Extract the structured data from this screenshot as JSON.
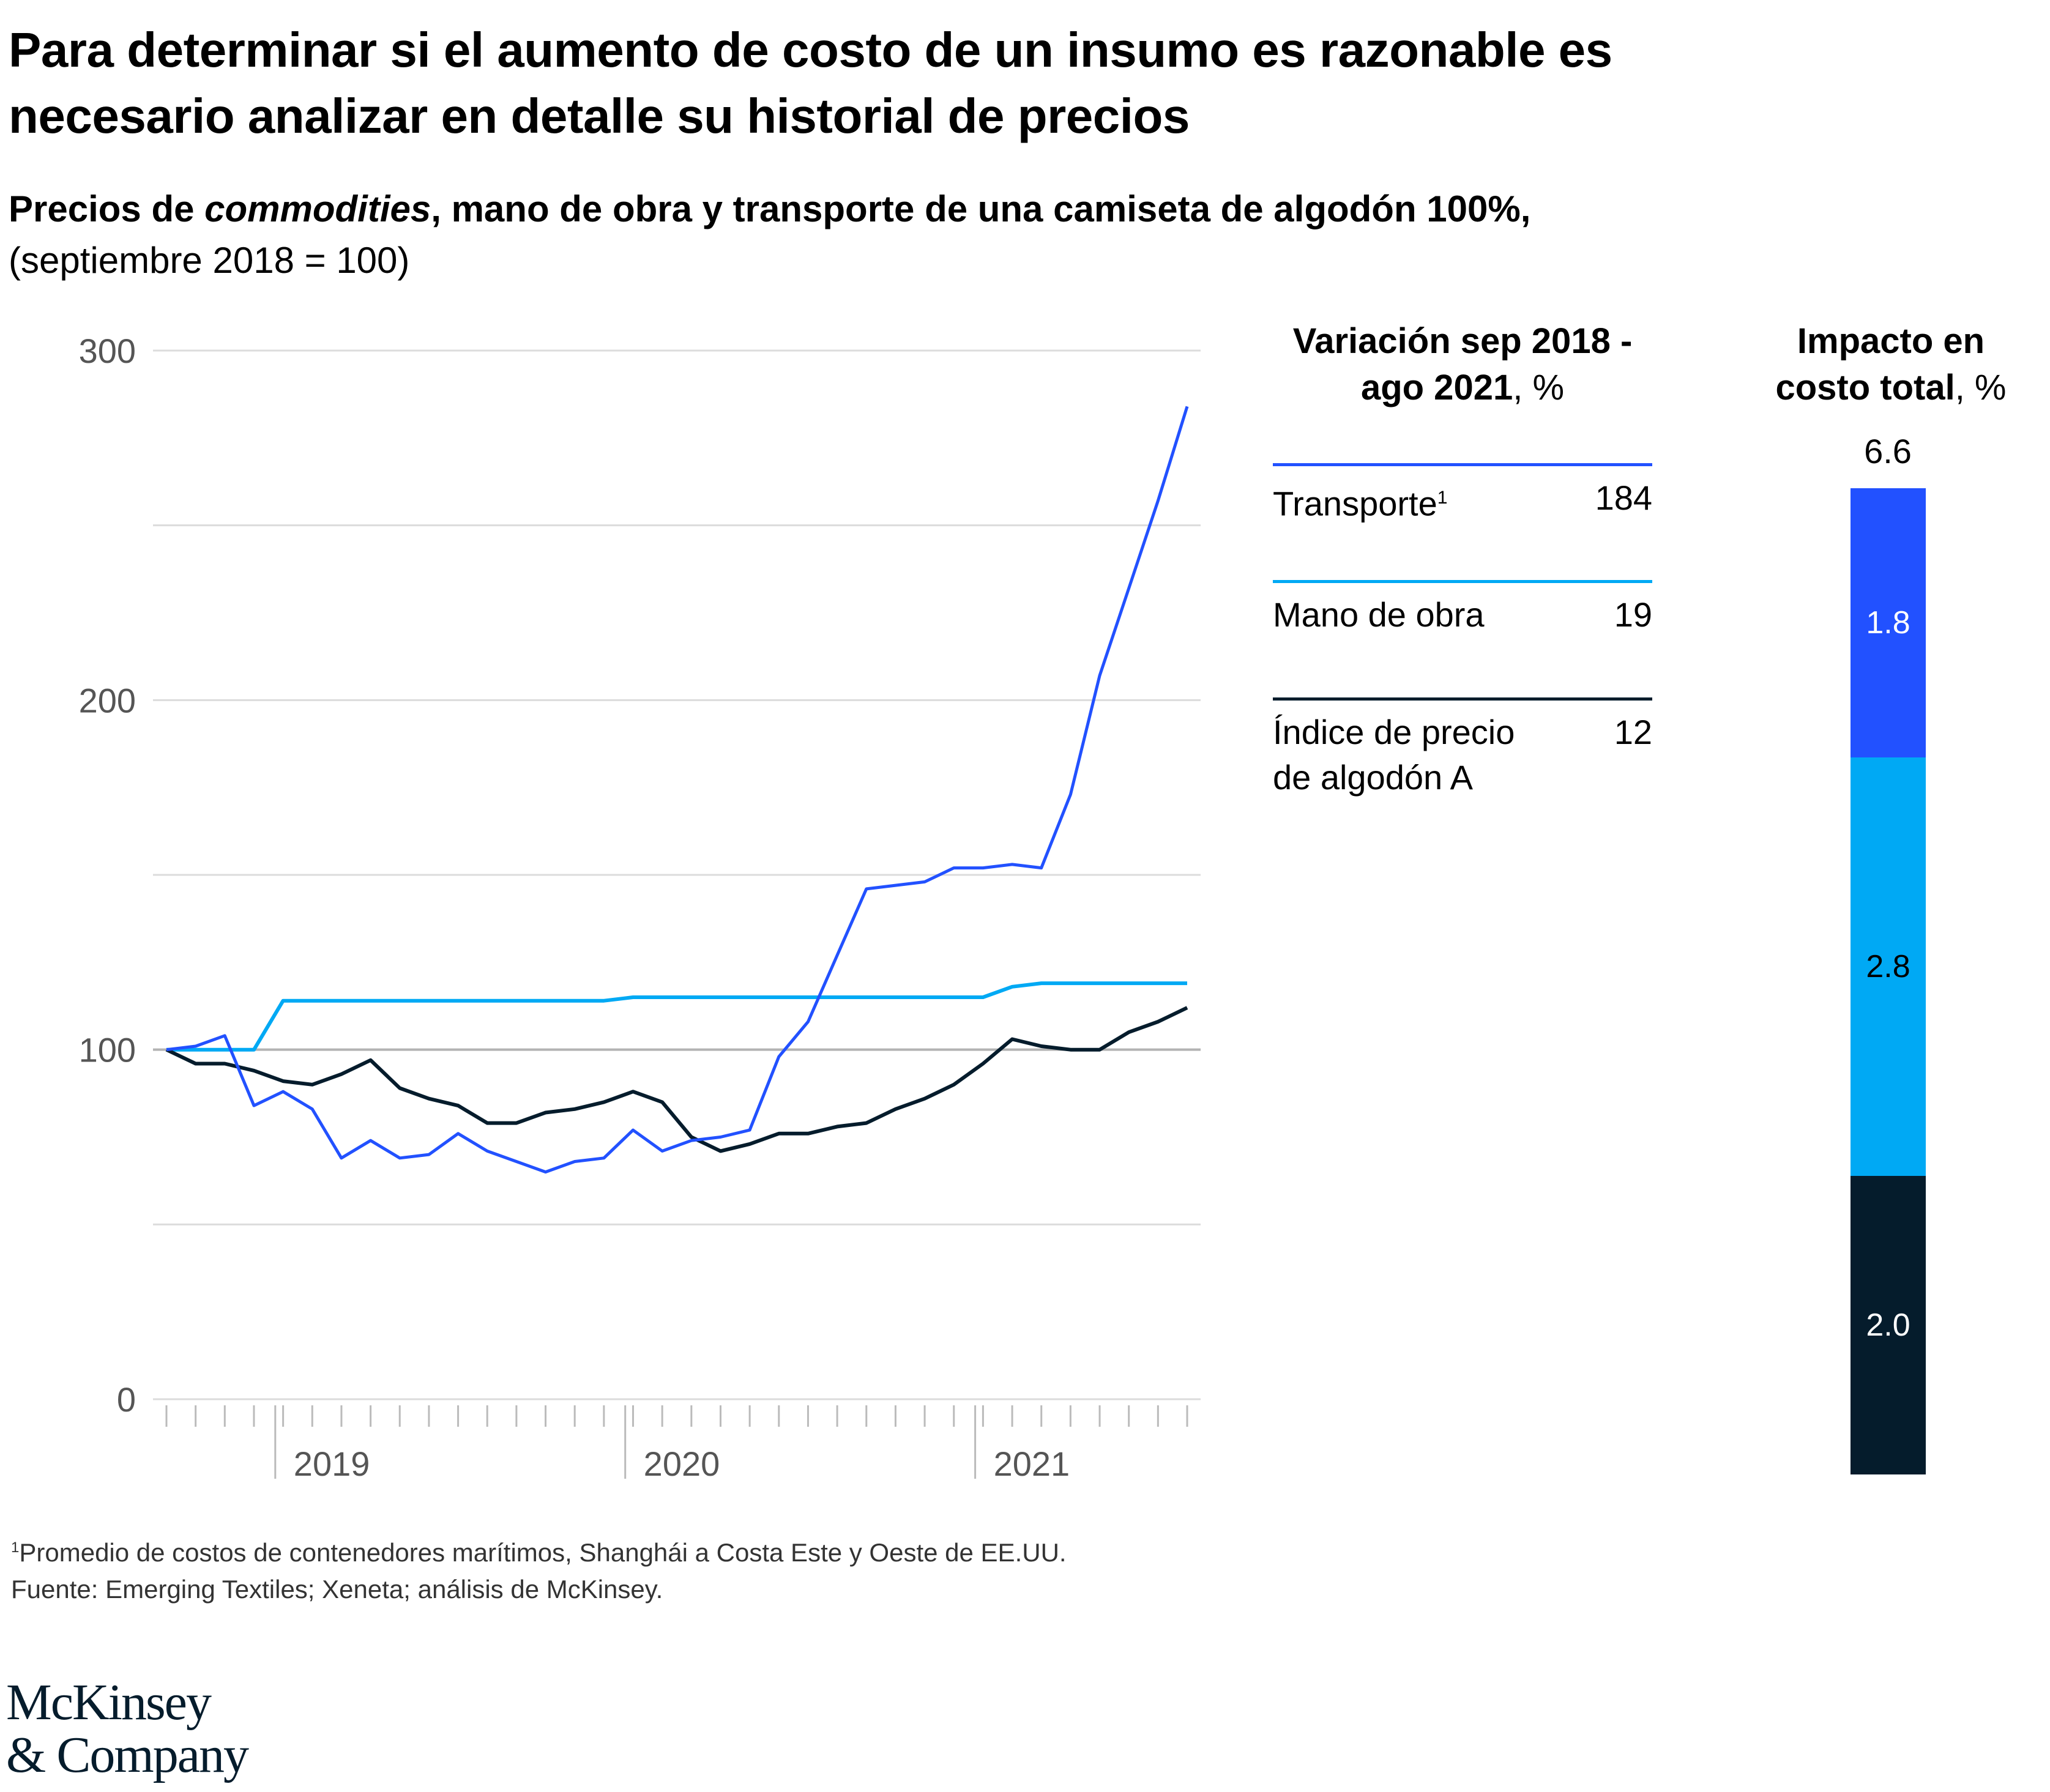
{
  "title": "Para determinar si el aumento de costo de un insumo es razonable es necesario analizar en detalle su historial de precios",
  "subtitle": {
    "part1": "Precios de ",
    "italic": "commodities",
    "part2": ", mano de obra y transporte de una camiseta de algodón 100%,",
    "unit": "(septiembre 2018 = 100)"
  },
  "chart_data": [
    {
      "type": "line",
      "title": "Precios de commodities, mano de obra y transporte de una camiseta de algodón 100%",
      "ylabel": "(septiembre 2018 = 100)",
      "ylim": [
        0,
        300
      ],
      "yticks": [
        0,
        100,
        200,
        300
      ],
      "ytick_labels": [
        "0",
        "100",
        "200",
        "300"
      ],
      "grid": true,
      "x_start": "2018-09",
      "x_end": "2021-08",
      "x_periods": 36,
      "xtick_labels": [
        "2019",
        "2020",
        "2021"
      ],
      "series": [
        {
          "name": "Transporte",
          "color": "#2251ff",
          "values": [
            100,
            101,
            104,
            84,
            88,
            83,
            69,
            74,
            69,
            70,
            76,
            71,
            68,
            65,
            68,
            69,
            77,
            71,
            74,
            75,
            77,
            98,
            108,
            127,
            146,
            147,
            148,
            152,
            152,
            153,
            152,
            173,
            207,
            232,
            257,
            284
          ]
        },
        {
          "name": "Mano de obra",
          "color": "#00a9f4",
          "values": [
            100,
            100,
            100,
            100,
            114,
            114,
            114,
            114,
            114,
            114,
            114,
            114,
            114,
            114,
            114,
            114,
            115,
            115,
            115,
            115,
            115,
            115,
            115,
            115,
            115,
            115,
            115,
            115,
            115,
            118,
            119,
            119,
            119,
            119,
            119,
            119
          ]
        },
        {
          "name": "Índice de precio de algodón A",
          "color": "#051c2c",
          "values": [
            100,
            96,
            96,
            94,
            91,
            90,
            93,
            97,
            89,
            86,
            84,
            79,
            79,
            82,
            83,
            85,
            88,
            85,
            75,
            71,
            73,
            76,
            76,
            78,
            79,
            83,
            86,
            90,
            96,
            103,
            101,
            100,
            100,
            105,
            108,
            112
          ]
        }
      ]
    },
    {
      "type": "table",
      "title": "Variación sep 2018 - ago 2021, %",
      "rows": [
        {
          "label": "Transporte",
          "footnote": "1",
          "value": "184",
          "color": "#2251ff"
        },
        {
          "label": "Mano de obra",
          "value": "19",
          "color": "#00a9f4"
        },
        {
          "label": "Índice de precio de algodón A",
          "value": "12",
          "color": "#051c2c"
        }
      ]
    },
    {
      "type": "bar",
      "title": "Impacto en costo total, %",
      "total": 6.6,
      "total_label": "6.6",
      "segments": [
        {
          "name": "Transporte",
          "value": 1.8,
          "label": "1.8",
          "color": "#2251ff",
          "text_color": "#ffffff"
        },
        {
          "name": "Mano de obra",
          "value": 2.8,
          "label": "2.8",
          "color": "#00a9f4",
          "text_color": "#000000"
        },
        {
          "name": "Índice de precio de algodón A",
          "value": 2.0,
          "label": "2.0",
          "color": "#051c2c",
          "text_color": "#ffffff"
        }
      ]
    }
  ],
  "table": {
    "head_bold": "Variación sep 2018 - ago 2021",
    "head_unit": ", %",
    "rows": [
      {
        "label": "Transporte",
        "sup": "1",
        "value": "184"
      },
      {
        "label": "Mano de obra",
        "sup": "",
        "value": "19"
      },
      {
        "label1": "Índice de precio",
        "label2": "de algodón A",
        "value": "12"
      }
    ]
  },
  "bar": {
    "head_line1": "Impacto en",
    "head_bold": "costo total",
    "head_unit": ", %",
    "total": "6.6",
    "seg_labels": [
      "1.8",
      "2.8",
      "2.0"
    ]
  },
  "footnote": {
    "sup": "1",
    "line1": "Promedio de costos de contenedores marítimos, Shanghái a Costa Este y Oeste de EE.UU.",
    "line2": "Fuente: Emerging Textiles; Xeneta; análisis de McKinsey."
  },
  "logo": {
    "line1": "McKinsey",
    "line2": "& Company"
  }
}
